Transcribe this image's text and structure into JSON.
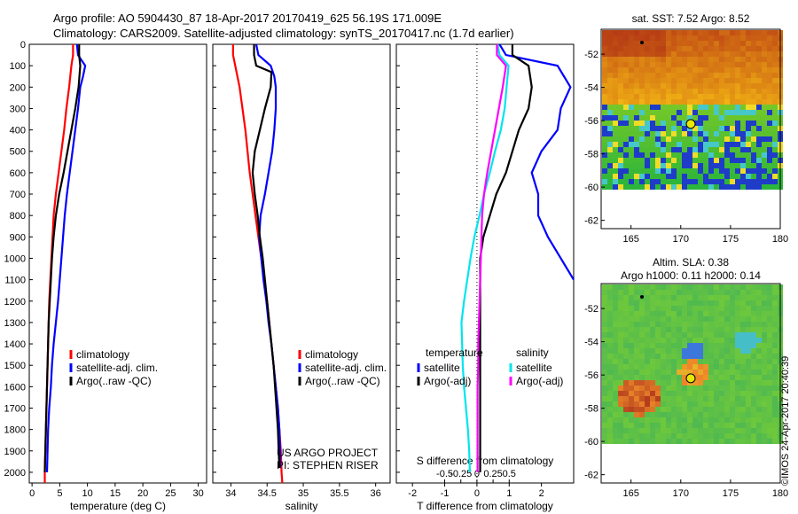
{
  "header": {
    "line1": "Argo profile: AO 5904430_87 18-Apr-2017 20170419_625 56.19S 171.009E",
    "line2": "Climatology: CARS2009. Satellite-adjusted climatology: synTS_20170417.nc (1.7d earlier)"
  },
  "colors": {
    "climatology": "#ff0000",
    "satellite": "#0000ff",
    "argo": "#000000",
    "argo_salinity_diff": "#ff00ff",
    "satellite_salinity_diff": "#00e5ee"
  },
  "shared_depth": {
    "label": "",
    "ylim": [
      0,
      2050
    ],
    "ticks": [
      "0",
      "100",
      "200",
      "300",
      "400",
      "500",
      "600",
      "700",
      "800",
      "900",
      "1000",
      "1100",
      "1200",
      "1300",
      "1400",
      "1500",
      "1600",
      "1700",
      "1800",
      "1900",
      "2000"
    ]
  },
  "chart_data": [
    {
      "type": "line",
      "name": "temperature-profile",
      "xlabel": "temperature (deg C)",
      "xlim": [
        -0.5,
        31.5
      ],
      "ylim": [
        0,
        2050
      ],
      "xticks": [
        "0",
        "5",
        "10",
        "15",
        "20",
        "25",
        "30"
      ],
      "y_reversed": true,
      "legend": {
        "placement": "middle-left",
        "entries": [
          "climatology",
          "satellite-adj. clim.",
          "Argo(..raw -QC)"
        ]
      },
      "series": [
        {
          "name": "climatology",
          "color": "#ff0000",
          "points": [
            [
              7.4,
              0
            ],
            [
              7.4,
              50
            ],
            [
              7.1,
              100
            ],
            [
              6.7,
              200
            ],
            [
              6.2,
              300
            ],
            [
              5.8,
              400
            ],
            [
              5.3,
              500
            ],
            [
              4.8,
              600
            ],
            [
              4.3,
              700
            ],
            [
              3.9,
              800
            ],
            [
              3.7,
              900
            ],
            [
              3.5,
              1000
            ],
            [
              3.3,
              1100
            ],
            [
              3.1,
              1200
            ],
            [
              3.0,
              1300
            ],
            [
              2.9,
              1400
            ],
            [
              2.8,
              1500
            ],
            [
              2.7,
              1600
            ],
            [
              2.6,
              1700
            ],
            [
              2.5,
              1800
            ],
            [
              2.4,
              1900
            ],
            [
              2.3,
              2000
            ],
            [
              2.3,
              2050
            ]
          ]
        },
        {
          "name": "satellite-adj. clim.",
          "color": "#0000ff",
          "points": [
            [
              8.1,
              0
            ],
            [
              8.3,
              50
            ],
            [
              9.6,
              100
            ],
            [
              9.2,
              150
            ],
            [
              8.7,
              200
            ],
            [
              8.3,
              300
            ],
            [
              7.8,
              400
            ],
            [
              7.3,
              500
            ],
            [
              6.8,
              600
            ],
            [
              6.3,
              700
            ],
            [
              5.9,
              800
            ],
            [
              5.6,
              900
            ],
            [
              5.3,
              1000
            ],
            [
              5.0,
              1100
            ],
            [
              4.7,
              1200
            ],
            [
              4.3,
              1300
            ],
            [
              3.9,
              1400
            ],
            [
              3.6,
              1500
            ],
            [
              3.4,
              1600
            ],
            [
              3.1,
              1700
            ],
            [
              2.9,
              1800
            ],
            [
              2.8,
              1900
            ],
            [
              2.7,
              2000
            ]
          ]
        },
        {
          "name": "Argo(..raw -QC)",
          "color": "#000000",
          "points": [
            [
              8.5,
              0
            ],
            [
              8.5,
              50
            ],
            [
              8.7,
              100
            ],
            [
              8.4,
              200
            ],
            [
              7.8,
              300
            ],
            [
              7.1,
              400
            ],
            [
              6.4,
              500
            ],
            [
              5.7,
              600
            ],
            [
              4.9,
              700
            ],
            [
              4.3,
              800
            ],
            [
              3.9,
              900
            ],
            [
              3.6,
              1000
            ],
            [
              3.4,
              1100
            ],
            [
              3.2,
              1200
            ],
            [
              3.0,
              1300
            ],
            [
              2.9,
              1400
            ],
            [
              2.8,
              1500
            ],
            [
              2.7,
              1600
            ],
            [
              2.6,
              1700
            ],
            [
              2.5,
              1800
            ],
            [
              2.4,
              1900
            ],
            [
              2.3,
              2000
            ]
          ]
        }
      ]
    },
    {
      "type": "line",
      "name": "salinity-profile",
      "xlabel": "salinity",
      "xlim": [
        33.75,
        36.2
      ],
      "ylim": [
        0,
        2050
      ],
      "xticks": [
        "34",
        "34.5",
        "35",
        "35.5",
        "36"
      ],
      "y_reversed": true,
      "legend": {
        "placement": "middle-right",
        "entries": [
          "climatology",
          "satellite-adj. clim.",
          "Argo(..raw -QC)"
        ]
      },
      "annotations": [
        "US ARGO PROJECT",
        "PI: STEPHEN RISER"
      ],
      "series": [
        {
          "name": "climatology",
          "color": "#ff0000",
          "points": [
            [
              34.03,
              0
            ],
            [
              34.03,
              50
            ],
            [
              34.06,
              100
            ],
            [
              34.12,
              200
            ],
            [
              34.16,
              300
            ],
            [
              34.2,
              400
            ],
            [
              34.23,
              500
            ],
            [
              34.26,
              600
            ],
            [
              34.3,
              700
            ],
            [
              34.34,
              800
            ],
            [
              34.38,
              900
            ],
            [
              34.42,
              1000
            ],
            [
              34.46,
              1100
            ],
            [
              34.5,
              1200
            ],
            [
              34.53,
              1300
            ],
            [
              34.56,
              1400
            ],
            [
              34.59,
              1500
            ],
            [
              34.62,
              1600
            ],
            [
              34.65,
              1700
            ],
            [
              34.67,
              1800
            ],
            [
              34.69,
              1900
            ],
            [
              34.7,
              2000
            ],
            [
              34.71,
              2050
            ]
          ]
        },
        {
          "name": "satellite-adj. clim.",
          "color": "#0000ff",
          "points": [
            [
              34.35,
              0
            ],
            [
              34.38,
              50
            ],
            [
              34.55,
              100
            ],
            [
              34.6,
              150
            ],
            [
              34.62,
              200
            ],
            [
              34.62,
              300
            ],
            [
              34.6,
              400
            ],
            [
              34.57,
              500
            ],
            [
              34.52,
              600
            ],
            [
              34.47,
              700
            ],
            [
              34.41,
              800
            ],
            [
              34.39,
              900
            ],
            [
              34.42,
              1000
            ],
            [
              34.45,
              1100
            ],
            [
              34.49,
              1200
            ],
            [
              34.52,
              1300
            ],
            [
              34.56,
              1400
            ],
            [
              34.59,
              1500
            ],
            [
              34.62,
              1600
            ],
            [
              34.65,
              1700
            ],
            [
              34.67,
              1800
            ],
            [
              34.68,
              1900
            ],
            [
              34.68,
              1980
            ]
          ]
        },
        {
          "name": "Argo(..raw -QC)",
          "color": "#000000",
          "points": [
            [
              34.32,
              0
            ],
            [
              34.32,
              50
            ],
            [
              34.35,
              100
            ],
            [
              34.56,
              130
            ],
            [
              34.55,
              200
            ],
            [
              34.47,
              300
            ],
            [
              34.4,
              400
            ],
            [
              34.33,
              500
            ],
            [
              34.3,
              600
            ],
            [
              34.33,
              700
            ],
            [
              34.37,
              800
            ],
            [
              34.4,
              900
            ],
            [
              34.44,
              1000
            ],
            [
              34.47,
              1100
            ],
            [
              34.5,
              1200
            ],
            [
              34.53,
              1300
            ],
            [
              34.56,
              1400
            ],
            [
              34.59,
              1500
            ],
            [
              34.61,
              1600
            ],
            [
              34.63,
              1700
            ],
            [
              34.65,
              1800
            ],
            [
              34.66,
              1900
            ],
            [
              34.67,
              1980
            ]
          ]
        }
      ]
    },
    {
      "type": "line",
      "name": "difference-profile",
      "xlabel": "T difference from climatology",
      "xlabel_top": "S difference from climatology",
      "xlim": [
        -2.5,
        3.0
      ],
      "ylim": [
        0,
        2050
      ],
      "xticks_T": [
        "-2",
        "-1",
        "0",
        "1",
        "2"
      ],
      "xticks_S": [
        "-0.5",
        "-0.25",
        "0",
        "0.25",
        "0.5"
      ],
      "y_reversed": true,
      "legend": {
        "placement": "lower-middle",
        "temperature_header": "temperature",
        "salinity_header": "salinity",
        "entries": [
          "satellite",
          "Argo(-adj)",
          "satellite",
          "Argo(-adj)"
        ]
      },
      "series": [
        {
          "name": "temperature satellite",
          "color": "#0000ff",
          "points": [
            [
              0.7,
              0
            ],
            [
              0.9,
              50
            ],
            [
              2.5,
              100
            ],
            [
              2.9,
              200
            ],
            [
              2.6,
              300
            ],
            [
              2.5,
              400
            ],
            [
              2.0,
              500
            ],
            [
              1.7,
              600
            ],
            [
              1.9,
              700
            ],
            [
              1.9,
              800
            ],
            [
              2.2,
              900
            ],
            [
              2.6,
              1000
            ],
            [
              3.0,
              1100
            ]
          ]
        },
        {
          "name": "temperature Argo(-adj)",
          "color": "#000000",
          "points": [
            [
              1.1,
              0
            ],
            [
              1.1,
              50
            ],
            [
              1.6,
              100
            ],
            [
              1.7,
              200
            ],
            [
              1.6,
              300
            ],
            [
              1.3,
              400
            ],
            [
              1.1,
              500
            ],
            [
              0.9,
              600
            ],
            [
              0.6,
              700
            ],
            [
              0.4,
              800
            ],
            [
              0.2,
              900
            ],
            [
              0.1,
              1000
            ],
            [
              0.1,
              1200
            ],
            [
              0.1,
              1500
            ],
            [
              0.1,
              1800
            ],
            [
              0.1,
              2000
            ]
          ]
        },
        {
          "name": "salinity satellite",
          "color": "#00e5ee",
          "points": [
            [
              0.32,
              0
            ],
            [
              0.35,
              50
            ],
            [
              0.49,
              100
            ],
            [
              0.46,
              200
            ],
            [
              0.43,
              300
            ],
            [
              0.37,
              400
            ],
            [
              0.28,
              500
            ],
            [
              0.2,
              600
            ],
            [
              0.11,
              700
            ],
            [
              0.04,
              800
            ],
            [
              -0.04,
              900
            ],
            [
              -0.1,
              1000
            ],
            [
              -0.15,
              1100
            ],
            [
              -0.2,
              1200
            ],
            [
              -0.24,
              1300
            ],
            [
              -0.23,
              1400
            ],
            [
              -0.22,
              1500
            ],
            [
              -0.2,
              1600
            ],
            [
              -0.17,
              1700
            ],
            [
              -0.14,
              1800
            ],
            [
              -0.12,
              1900
            ],
            [
              -0.11,
              2000
            ]
          ]
        },
        {
          "name": "salinity Argo(-adj)",
          "color": "#ff00ff",
          "points": [
            [
              0.31,
              0
            ],
            [
              0.31,
              50
            ],
            [
              0.45,
              100
            ],
            [
              0.4,
              200
            ],
            [
              0.34,
              300
            ],
            [
              0.28,
              400
            ],
            [
              0.22,
              500
            ],
            [
              0.16,
              600
            ],
            [
              0.11,
              700
            ],
            [
              0.08,
              800
            ],
            [
              0.07,
              900
            ],
            [
              0.06,
              1000
            ],
            [
              0.05,
              1100
            ],
            [
              0.04,
              1200
            ],
            [
              0.03,
              1300
            ],
            [
              0.02,
              1400
            ],
            [
              0.02,
              1500
            ],
            [
              0.01,
              1600
            ],
            [
              0.01,
              1700
            ],
            [
              0.01,
              1800
            ],
            [
              0.01,
              1900
            ],
            [
              0.01,
              2000
            ]
          ]
        }
      ]
    },
    {
      "type": "heatmap",
      "name": "sst-map",
      "title": "sat. SST: 7.52  Argo: 8.52",
      "xlim": [
        162,
        180
      ],
      "ylim": [
        -62.5,
        -50.5
      ],
      "xticks": [
        "165",
        "170",
        "175",
        "180"
      ],
      "yticks": [
        "-52",
        "-54",
        "-56",
        "-58",
        "-60",
        "-62"
      ],
      "marker": {
        "lon": 171.0,
        "lat": -56.2
      }
    },
    {
      "type": "heatmap",
      "name": "sla-map",
      "title": "Altim. SLA: 0.38",
      "subtitle": "Argo h1000: 0.11  h2000: 0.14",
      "xlim": [
        162,
        180
      ],
      "ylim": [
        -62.5,
        -50.5
      ],
      "xticks": [
        "165",
        "170",
        "175",
        "180"
      ],
      "yticks": [
        "-52",
        "-54",
        "-56",
        "-58",
        "-60",
        "-62"
      ],
      "marker": {
        "lon": 171.0,
        "lat": -56.2
      }
    }
  ],
  "watermark": "©IMOS 24-Apr-2017 20:40:39"
}
